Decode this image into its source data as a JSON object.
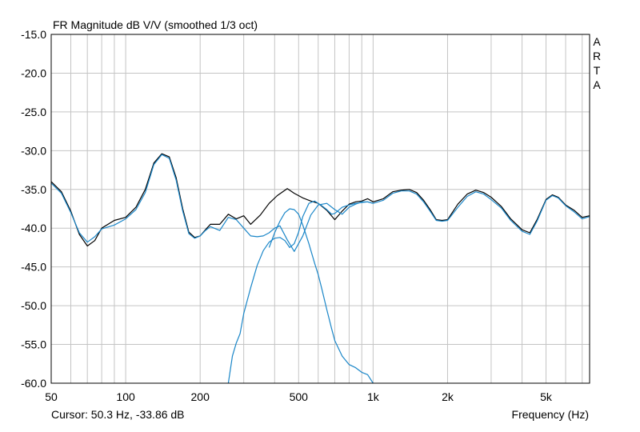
{
  "chart_data": {
    "type": "line",
    "title": "FR Magnitude dB V/V (smoothed 1/3 oct)",
    "xlabel": "Frequency (Hz)",
    "ylabel": "",
    "x_scale": "log",
    "xlim": [
      50,
      7500
    ],
    "ylim": [
      -60,
      -15
    ],
    "grid": true,
    "legend": "none",
    "watermark": [
      "A",
      "R",
      "T",
      "A"
    ],
    "cursor_readout": "Cursor: 50.3 Hz, -33.86 dB",
    "x_tick_labels": [
      {
        "value": 50,
        "label": "50"
      },
      {
        "value": 100,
        "label": "100"
      },
      {
        "value": 200,
        "label": "200"
      },
      {
        "value": 500,
        "label": "500"
      },
      {
        "value": 1000,
        "label": "1k"
      },
      {
        "value": 2000,
        "label": "2k"
      },
      {
        "value": 5000,
        "label": "5k"
      }
    ],
    "x_grid_values": [
      60,
      70,
      80,
      90,
      100,
      200,
      300,
      400,
      500,
      600,
      700,
      800,
      900,
      1000,
      2000,
      3000,
      4000,
      5000,
      6000,
      7000
    ],
    "y_ticks": [
      {
        "value": -15,
        "label": "-15.0"
      },
      {
        "value": -20,
        "label": "-20.0"
      },
      {
        "value": -25,
        "label": "-25.0"
      },
      {
        "value": -30,
        "label": "-30.0"
      },
      {
        "value": -35,
        "label": "-35.0"
      },
      {
        "value": -40,
        "label": "-40.0"
      },
      {
        "value": -45,
        "label": "-45.0"
      },
      {
        "value": -50,
        "label": "-50.0"
      },
      {
        "value": -55,
        "label": "-55.0"
      },
      {
        "value": -60,
        "label": "-60.0"
      }
    ],
    "series": [
      {
        "color": "#000000",
        "x": [
          50,
          55,
          60,
          65,
          70,
          75,
          80,
          90,
          100,
          110,
          120,
          130,
          140,
          150,
          160,
          170,
          180,
          190,
          200,
          210,
          220,
          240,
          260,
          280,
          300,
          320,
          350,
          380,
          410,
          450,
          480,
          520,
          560,
          600,
          650,
          700,
          750,
          800,
          850,
          900,
          950,
          1000,
          1100,
          1200,
          1300,
          1400,
          1500,
          1600,
          1700,
          1800,
          1900,
          2000,
          2200,
          2400,
          2600,
          2800,
          3000,
          3300,
          3600,
          4000,
          4300,
          4600,
          5000,
          5300,
          5600,
          6000,
          6500,
          7000,
          7500
        ],
        "y": [
          -34.0,
          -35.3,
          -37.8,
          -40.8,
          -42.3,
          -41.6,
          -40.0,
          -39.0,
          -38.6,
          -37.3,
          -35.0,
          -31.6,
          -30.4,
          -30.8,
          -33.5,
          -37.5,
          -40.5,
          -41.2,
          -41.0,
          -40.2,
          -39.5,
          -39.5,
          -38.2,
          -38.8,
          -38.4,
          -39.5,
          -38.3,
          -36.8,
          -35.8,
          -34.9,
          -35.5,
          -36.1,
          -36.5,
          -36.8,
          -37.7,
          -38.9,
          -37.8,
          -36.9,
          -36.6,
          -36.5,
          -36.2,
          -36.6,
          -36.2,
          -35.3,
          -35.1,
          -35.0,
          -35.4,
          -36.4,
          -37.6,
          -38.9,
          -39.0,
          -38.9,
          -36.9,
          -35.6,
          -35.1,
          -35.4,
          -36.0,
          -37.2,
          -38.8,
          -40.2,
          -40.6,
          -38.9,
          -36.3,
          -35.7,
          -36.0,
          -37.0,
          -37.7,
          -38.6,
          -38.4
        ]
      },
      {
        "color": "#1a86c8",
        "x": [
          50,
          55,
          60,
          65,
          70,
          75,
          80,
          90,
          100,
          110,
          120,
          130,
          140,
          150,
          160,
          170,
          180,
          190,
          200,
          210,
          220,
          240,
          260,
          280,
          300,
          320,
          340,
          360,
          380,
          400,
          420,
          450,
          480,
          520,
          560,
          600,
          650,
          700,
          750,
          800,
          850,
          900,
          950,
          1000,
          1100,
          1200,
          1300,
          1400,
          1500,
          1600,
          1700,
          1800,
          1900,
          2000,
          2200,
          2400,
          2600,
          2800,
          3000,
          3300,
          3600,
          4000,
          4300,
          4600,
          5000,
          5300,
          5600,
          6000,
          6500,
          7000,
          7500
        ],
        "y": [
          -34.2,
          -35.5,
          -38.0,
          -40.6,
          -41.8,
          -41.1,
          -40.1,
          -39.6,
          -38.8,
          -37.6,
          -35.4,
          -31.8,
          -30.5,
          -31.0,
          -33.8,
          -37.8,
          -40.7,
          -41.3,
          -41.0,
          -40.3,
          -39.8,
          -40.3,
          -38.6,
          -38.9,
          -40.0,
          -41.0,
          -41.1,
          -41.0,
          -40.6,
          -40.0,
          -39.7,
          -41.5,
          -43.0,
          -41.0,
          -38.3,
          -37.0,
          -36.8,
          -37.6,
          -38.2,
          -37.3,
          -36.9,
          -36.6,
          -36.6,
          -36.8,
          -36.4,
          -35.5,
          -35.2,
          -35.2,
          -35.6,
          -36.6,
          -37.8,
          -39.0,
          -39.1,
          -39.0,
          -37.3,
          -35.9,
          -35.3,
          -35.6,
          -36.3,
          -37.4,
          -39.0,
          -40.4,
          -40.8,
          -39.1,
          -36.4,
          -35.8,
          -36.1,
          -37.1,
          -37.9,
          -38.8,
          -38.5
        ]
      },
      {
        "color": "#1a86c8",
        "x": [
          260,
          270,
          280,
          290,
          300,
          320,
          340,
          360,
          380,
          400,
          420,
          440,
          460,
          480,
          500,
          520,
          550,
          580,
          600,
          620,
          650,
          680,
          700,
          750,
          800,
          850,
          900,
          950,
          1000
        ],
        "y": [
          -60.0,
          -56.5,
          -54.8,
          -53.6,
          -51.0,
          -47.7,
          -44.8,
          -42.9,
          -41.8,
          -41.3,
          -41.2,
          -41.6,
          -42.5,
          -42.0,
          -40.5,
          -38.5,
          -36.8,
          -36.5,
          -36.8,
          -37.1,
          -37.6,
          -38.2,
          -38.1,
          -37.3,
          -37.0,
          -36.8,
          -36.7,
          -36.6,
          -36.8
        ]
      },
      {
        "color": "#1a86c8",
        "x": [
          380,
          400,
          420,
          440,
          460,
          480,
          500,
          520,
          550,
          580,
          600,
          620,
          650,
          680,
          700,
          750,
          800,
          850,
          900,
          950,
          1000
        ],
        "y": [
          -42.5,
          -40.6,
          -39.1,
          -38.0,
          -37.5,
          -37.6,
          -38.2,
          -39.6,
          -42.0,
          -44.5,
          -46.0,
          -47.8,
          -50.5,
          -53.0,
          -54.5,
          -56.5,
          -57.6,
          -58.0,
          -58.6,
          -58.9,
          -60.0
        ]
      }
    ]
  }
}
